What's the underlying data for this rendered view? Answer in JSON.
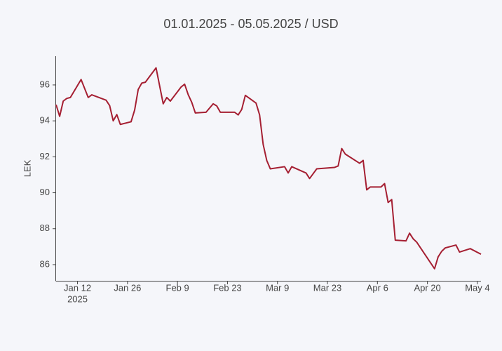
{
  "chart_data": {
    "type": "line",
    "title": "01.01.2025 - 05.05.2025 / USD",
    "y_label": "LEK",
    "x": [
      "2025-01-06",
      "2025-01-07",
      "2025-01-08",
      "2025-01-09",
      "2025-01-10",
      "2025-01-13",
      "2025-01-15",
      "2025-01-16",
      "2025-01-20",
      "2025-01-21",
      "2025-01-22",
      "2025-01-23",
      "2025-01-24",
      "2025-01-27",
      "2025-01-28",
      "2025-01-29",
      "2025-01-30",
      "2025-01-31",
      "2025-02-03",
      "2025-02-05",
      "2025-02-06",
      "2025-02-07",
      "2025-02-10",
      "2025-02-11",
      "2025-02-12",
      "2025-02-13",
      "2025-02-14",
      "2025-02-17",
      "2025-02-19",
      "2025-02-20",
      "2025-02-21",
      "2025-02-24",
      "2025-02-25",
      "2025-02-26",
      "2025-02-27",
      "2025-02-28",
      "2025-03-03",
      "2025-03-04",
      "2025-03-05",
      "2025-03-06",
      "2025-03-07",
      "2025-03-11",
      "2025-03-12",
      "2025-03-13",
      "2025-03-17",
      "2025-03-18",
      "2025-03-19",
      "2025-03-20",
      "2025-03-25",
      "2025-03-26",
      "2025-03-27",
      "2025-03-28",
      "2025-04-01",
      "2025-04-02",
      "2025-04-03",
      "2025-04-04",
      "2025-04-07",
      "2025-04-08",
      "2025-04-09",
      "2025-04-10",
      "2025-04-11",
      "2025-04-14",
      "2025-04-15",
      "2025-04-16",
      "2025-04-17",
      "2025-04-22",
      "2025-04-23",
      "2025-04-24",
      "2025-04-25",
      "2025-04-28",
      "2025-04-29",
      "2025-05-02",
      "2025-05-05"
    ],
    "series": [
      {
        "name": "USD",
        "color": "#a51f32",
        "values": [
          94.9,
          94.25,
          95.1,
          95.25,
          95.3,
          96.3,
          95.3,
          95.45,
          95.15,
          94.85,
          94.0,
          94.35,
          93.8,
          93.95,
          94.6,
          95.75,
          96.1,
          96.15,
          96.95,
          94.95,
          95.3,
          95.1,
          95.88,
          96.04,
          95.46,
          95.03,
          94.44,
          94.48,
          94.95,
          94.83,
          94.48,
          94.48,
          94.48,
          94.33,
          94.64,
          95.42,
          94.99,
          94.33,
          92.69,
          91.8,
          91.33,
          91.45,
          91.1,
          91.45,
          91.1,
          90.79,
          91.06,
          91.33,
          91.41,
          91.49,
          92.46,
          92.15,
          91.64,
          91.8,
          90.16,
          90.32,
          90.32,
          90.51,
          89.46,
          89.62,
          87.36,
          87.32,
          87.75,
          87.44,
          87.25,
          85.77,
          86.43,
          86.74,
          86.93,
          87.09,
          86.7,
          86.89,
          86.58
        ]
      }
    ],
    "xlim": [
      "2025-01-06",
      "2025-05-05"
    ],
    "xticks": [
      {
        "value": "2025-01-12",
        "label": "Jan 12"
      },
      {
        "value": "2025-01-26",
        "label": "Jan 26"
      },
      {
        "value": "2025-02-09",
        "label": "Feb 9"
      },
      {
        "value": "2025-02-23",
        "label": "Feb 23"
      },
      {
        "value": "2025-03-09",
        "label": "Mar 9"
      },
      {
        "value": "2025-03-23",
        "label": "Mar 23"
      },
      {
        "value": "2025-04-06",
        "label": "Apr 6"
      },
      {
        "value": "2025-04-20",
        "label": "Apr 20"
      },
      {
        "value": "2025-05-04",
        "label": "May 4"
      }
    ],
    "x_year_label": "2025",
    "ylim": [
      85.1,
      97.6
    ],
    "yticks": [
      86,
      88,
      90,
      92,
      94,
      96
    ],
    "grid": false
  }
}
